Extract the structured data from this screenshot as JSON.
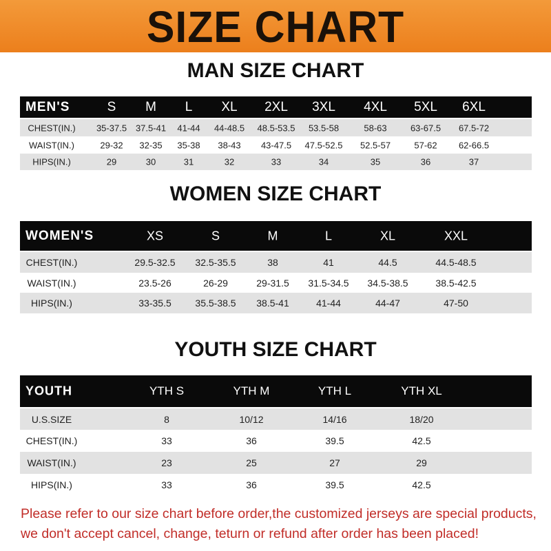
{
  "title": "SIZE CHART",
  "colors": {
    "banner": "#ef8a27",
    "header_row": "#0a0a0a",
    "stripe": "#e2e2e2",
    "notice": "#c12d28"
  },
  "men": {
    "title": "MAN SIZE CHART",
    "header": [
      "MEN'S",
      "S",
      "M",
      "L",
      "XL",
      "2XL",
      "3XL",
      "4XL",
      "5XL",
      "6XL"
    ],
    "rows": [
      [
        "CHEST(IN.)",
        "35-37.5",
        "37.5-41",
        "41-44",
        "44-48.5",
        "48.5-53.5",
        "53.5-58",
        "58-63",
        "63-67.5",
        "67.5-72"
      ],
      [
        "WAIST(IN.)",
        "29-32",
        "32-35",
        "35-38",
        "38-43",
        "43-47.5",
        "47.5-52.5",
        "52.5-57",
        "57-62",
        "62-66.5"
      ],
      [
        "HIPS(IN.)",
        "29",
        "30",
        "31",
        "32",
        "33",
        "34",
        "35",
        "36",
        "37"
      ]
    ]
  },
  "women": {
    "title": "WOMEN SIZE CHART",
    "header": [
      "WOMEN'S",
      "XS",
      "S",
      "M",
      "L",
      "XL",
      "XXL"
    ],
    "rows": [
      [
        "CHEST(IN.)",
        "29.5-32.5",
        "32.5-35.5",
        "38",
        "41",
        "44.5",
        "44.5-48.5"
      ],
      [
        "WAIST(IN.)",
        "23.5-26",
        "26-29",
        "29-31.5",
        "31.5-34.5",
        "34.5-38.5",
        "38.5-42.5"
      ],
      [
        "HIPS(IN.)",
        "33-35.5",
        "35.5-38.5",
        "38.5-41",
        "41-44",
        "44-47",
        "47-50"
      ]
    ]
  },
  "youth": {
    "title": "YOUTH SIZE CHART",
    "header": [
      "YOUTH",
      "YTH S",
      "YTH M",
      "YTH L",
      "YTH XL"
    ],
    "rows": [
      [
        "U.S.SIZE",
        "8",
        "10/12",
        "14/16",
        "18/20"
      ],
      [
        "CHEST(IN.)",
        "33",
        "36",
        "39.5",
        "42.5"
      ],
      [
        "WAIST(IN.)",
        "23",
        "25",
        "27",
        "29"
      ],
      [
        "HIPS(IN.)",
        "33",
        "36",
        "39.5",
        "42.5"
      ]
    ]
  },
  "notice": [
    "Please refer to our size chart before order,the customized jerseys are special products,",
    "we don't accept cancel, change, teturn or refund after order has been placed!"
  ]
}
